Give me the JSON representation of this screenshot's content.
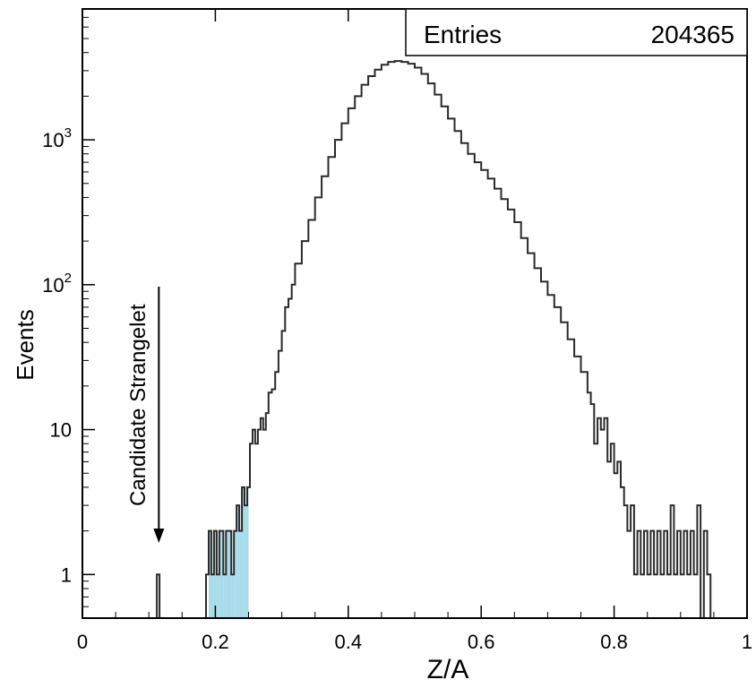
{
  "chart_data": {
    "type": "histogram",
    "xlabel": "Z/A",
    "ylabel": "Events",
    "xlim": [
      0,
      1
    ],
    "ylim": [
      0.5,
      8000
    ],
    "yscale": "log",
    "grid": false,
    "x_ticks": [
      "0",
      "0.2",
      "0.4",
      "0.6",
      "0.8",
      "1"
    ],
    "y_ticks": [
      {
        "value": 1,
        "base": "1",
        "exp": ""
      },
      {
        "value": 10,
        "base": "10",
        "exp": ""
      },
      {
        "value": 100,
        "base": "10",
        "exp": "2"
      },
      {
        "value": 1000,
        "base": "10",
        "exp": "3"
      }
    ],
    "stat_box": {
      "label": "Entries",
      "value": "204365"
    },
    "annotation": {
      "text": "Candidate Strangelet",
      "x": 0.115
    },
    "highlight": {
      "x_range": [
        0.19,
        0.25
      ],
      "color": "#a8dcea"
    },
    "colors": {
      "line": "#2a2a2a",
      "fill": "#a8dcea",
      "frame": "#000000"
    },
    "series": [
      {
        "points": [
          [
            0.11,
            0.5
          ],
          [
            0.112,
            1
          ],
          [
            0.116,
            0.5
          ],
          [
            0.18,
            0.5
          ],
          [
            0.186,
            1
          ],
          [
            0.19,
            2
          ],
          [
            0.194,
            1
          ],
          [
            0.198,
            2
          ],
          [
            0.202,
            1
          ],
          [
            0.206,
            2
          ],
          [
            0.212,
            1
          ],
          [
            0.216,
            2
          ],
          [
            0.224,
            1
          ],
          [
            0.228,
            2
          ],
          [
            0.232,
            3
          ],
          [
            0.236,
            2
          ],
          [
            0.24,
            4
          ],
          [
            0.244,
            3
          ],
          [
            0.248,
            4
          ],
          [
            0.252,
            8
          ],
          [
            0.256,
            10
          ],
          [
            0.26,
            8
          ],
          [
            0.264,
            10
          ],
          [
            0.268,
            12
          ],
          [
            0.272,
            10
          ],
          [
            0.276,
            13
          ],
          [
            0.28,
            18
          ],
          [
            0.285,
            19
          ],
          [
            0.29,
            25
          ],
          [
            0.295,
            35
          ],
          [
            0.3,
            48
          ],
          [
            0.305,
            70
          ],
          [
            0.31,
            80
          ],
          [
            0.315,
            100
          ],
          [
            0.32,
            140
          ],
          [
            0.33,
            200
          ],
          [
            0.34,
            280
          ],
          [
            0.35,
            400
          ],
          [
            0.36,
            560
          ],
          [
            0.37,
            760
          ],
          [
            0.38,
            1000
          ],
          [
            0.39,
            1300
          ],
          [
            0.4,
            1650
          ],
          [
            0.41,
            2000
          ],
          [
            0.42,
            2400
          ],
          [
            0.43,
            2750
          ],
          [
            0.44,
            3050
          ],
          [
            0.45,
            3300
          ],
          [
            0.46,
            3450
          ],
          [
            0.47,
            3500
          ],
          [
            0.48,
            3450
          ],
          [
            0.49,
            3350
          ],
          [
            0.5,
            3150
          ],
          [
            0.51,
            2850
          ],
          [
            0.52,
            2450
          ],
          [
            0.53,
            2050
          ],
          [
            0.54,
            1700
          ],
          [
            0.55,
            1400
          ],
          [
            0.56,
            1150
          ],
          [
            0.57,
            950
          ],
          [
            0.58,
            800
          ],
          [
            0.59,
            700
          ],
          [
            0.6,
            620
          ],
          [
            0.61,
            540
          ],
          [
            0.62,
            460
          ],
          [
            0.63,
            390
          ],
          [
            0.64,
            330
          ],
          [
            0.65,
            270
          ],
          [
            0.66,
            210
          ],
          [
            0.67,
            165
          ],
          [
            0.68,
            130
          ],
          [
            0.69,
            105
          ],
          [
            0.7,
            85
          ],
          [
            0.71,
            70
          ],
          [
            0.72,
            55
          ],
          [
            0.73,
            42
          ],
          [
            0.74,
            32
          ],
          [
            0.75,
            25
          ],
          [
            0.76,
            18
          ],
          [
            0.765,
            15
          ],
          [
            0.77,
            8
          ],
          [
            0.775,
            12
          ],
          [
            0.78,
            10
          ],
          [
            0.785,
            12
          ],
          [
            0.79,
            6
          ],
          [
            0.795,
            8
          ],
          [
            0.8,
            5
          ],
          [
            0.805,
            6
          ],
          [
            0.81,
            4
          ],
          [
            0.815,
            3
          ],
          [
            0.82,
            2
          ],
          [
            0.825,
            3
          ],
          [
            0.83,
            1
          ],
          [
            0.835,
            2
          ],
          [
            0.84,
            1
          ],
          [
            0.845,
            2
          ],
          [
            0.85,
            1
          ],
          [
            0.855,
            2
          ],
          [
            0.86,
            1
          ],
          [
            0.865,
            2
          ],
          [
            0.87,
            1
          ],
          [
            0.875,
            2
          ],
          [
            0.88,
            1
          ],
          [
            0.885,
            3
          ],
          [
            0.89,
            1
          ],
          [
            0.895,
            2
          ],
          [
            0.9,
            1
          ],
          [
            0.905,
            2
          ],
          [
            0.91,
            1
          ],
          [
            0.915,
            2
          ],
          [
            0.92,
            1
          ],
          [
            0.925,
            3
          ],
          [
            0.93,
            0.5
          ],
          [
            0.935,
            2
          ],
          [
            0.94,
            1
          ],
          [
            0.945,
            0.5
          ]
        ]
      }
    ]
  }
}
